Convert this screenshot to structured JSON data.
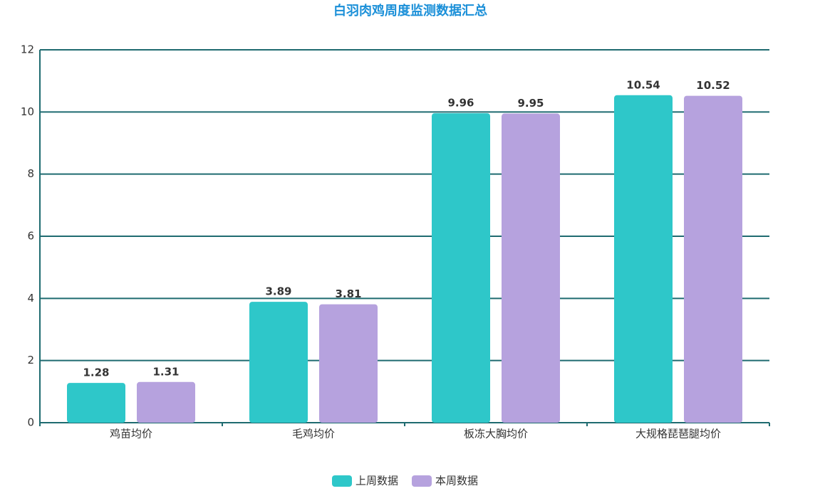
{
  "chart_data": {
    "type": "bar",
    "title": "白羽肉鸡周度监测数据汇总",
    "categories": [
      "鸡苗均价",
      "毛鸡均价",
      "板冻大胸均价",
      "大规格琵琶腿均价"
    ],
    "series": [
      {
        "name": "上周数据",
        "color": "#2ec7c9",
        "values": [
          1.28,
          3.89,
          9.96,
          10.54
        ]
      },
      {
        "name": "本周数据",
        "color": "#b6a2de",
        "values": [
          1.31,
          3.81,
          9.95,
          10.52
        ]
      }
    ],
    "ylim": [
      0,
      12
    ],
    "yticks": [
      0,
      2,
      4,
      6,
      8,
      10,
      12
    ],
    "grid": true,
    "legend": "bottom"
  }
}
